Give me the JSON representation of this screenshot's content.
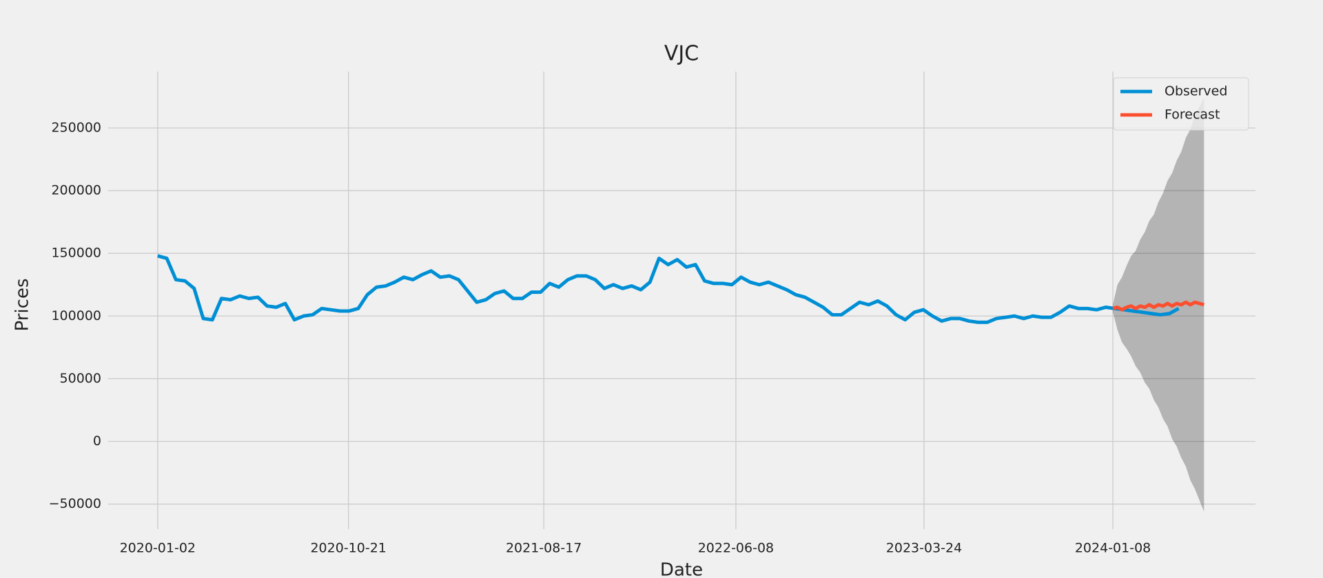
{
  "chart_data": {
    "type": "line",
    "title": "VJC",
    "x_label": "Date",
    "y_label": "Prices",
    "xlim": [
      "2019-10-18",
      "2024-08-14"
    ],
    "xticks": [
      "2020-01-02",
      "2020-10-21",
      "2021-08-17",
      "2022-06-08",
      "2023-03-24",
      "2024-01-08"
    ],
    "ylim": [
      -70000,
      295000
    ],
    "yticks": [
      {
        "value": -50000,
        "label": "−50000"
      },
      0,
      50000,
      100000,
      150000,
      200000,
      250000
    ],
    "grid": true,
    "legend": "upper right",
    "series": [
      {
        "name": "Observed",
        "color": "#008fd5",
        "x": [
          "2020-01-02",
          "2020-01-16",
          "2020-01-30",
          "2020-02-13",
          "2020-02-27",
          "2020-03-12",
          "2020-03-26",
          "2020-04-09",
          "2020-04-23",
          "2020-05-07",
          "2020-05-21",
          "2020-06-04",
          "2020-06-18",
          "2020-07-02",
          "2020-07-16",
          "2020-07-30",
          "2020-08-13",
          "2020-08-27",
          "2020-09-10",
          "2020-09-24",
          "2020-10-08",
          "2020-10-22",
          "2020-11-05",
          "2020-11-19",
          "2020-12-03",
          "2020-12-17",
          "2020-12-31",
          "2021-01-14",
          "2021-01-28",
          "2021-02-11",
          "2021-02-25",
          "2021-03-11",
          "2021-03-25",
          "2021-04-08",
          "2021-04-22",
          "2021-05-06",
          "2021-05-20",
          "2021-06-03",
          "2021-06-17",
          "2021-07-01",
          "2021-07-15",
          "2021-07-29",
          "2021-08-12",
          "2021-08-26",
          "2021-09-09",
          "2021-09-23",
          "2021-10-07",
          "2021-10-21",
          "2021-11-04",
          "2021-11-18",
          "2021-12-02",
          "2021-12-16",
          "2021-12-30",
          "2022-01-13",
          "2022-01-27",
          "2022-02-10",
          "2022-02-24",
          "2022-03-10",
          "2022-03-24",
          "2022-04-07",
          "2022-04-21",
          "2022-05-05",
          "2022-05-19",
          "2022-06-02",
          "2022-06-16",
          "2022-06-30",
          "2022-07-14",
          "2022-07-28",
          "2022-08-11",
          "2022-08-25",
          "2022-09-08",
          "2022-09-22",
          "2022-10-06",
          "2022-10-20",
          "2022-11-03",
          "2022-11-17",
          "2022-12-01",
          "2022-12-15",
          "2022-12-29",
          "2023-01-12",
          "2023-01-26",
          "2023-02-09",
          "2023-02-23",
          "2023-03-09",
          "2023-03-23",
          "2023-04-06",
          "2023-04-20",
          "2023-05-04",
          "2023-05-18",
          "2023-06-01",
          "2023-06-15",
          "2023-06-29",
          "2023-07-13",
          "2023-07-27",
          "2023-08-10",
          "2023-08-24",
          "2023-09-07",
          "2023-09-21",
          "2023-10-05",
          "2023-10-19",
          "2023-11-02",
          "2023-11-16",
          "2023-11-30",
          "2023-12-14",
          "2023-12-28",
          "2024-01-11",
          "2024-01-25",
          "2024-02-08",
          "2024-02-22",
          "2024-03-07",
          "2024-03-21",
          "2024-04-04",
          "2024-04-18"
        ],
        "values": [
          148000,
          146000,
          129000,
          128000,
          122000,
          98000,
          97000,
          114000,
          113000,
          116000,
          114000,
          115000,
          108000,
          107000,
          110000,
          97000,
          100000,
          101000,
          106000,
          105000,
          104000,
          104000,
          106000,
          117000,
          123000,
          124000,
          127000,
          131000,
          129000,
          133000,
          136000,
          131000,
          132000,
          129000,
          120000,
          111000,
          113000,
          118000,
          120000,
          114000,
          114000,
          119000,
          119000,
          126000,
          123000,
          129000,
          132000,
          132000,
          129000,
          122000,
          125000,
          122000,
          124000,
          121000,
          127000,
          146000,
          141000,
          145000,
          139000,
          141000,
          128000,
          126000,
          126000,
          125000,
          131000,
          127000,
          125000,
          127000,
          124000,
          121000,
          117000,
          115000,
          111000,
          107000,
          101000,
          101000,
          106000,
          111000,
          109000,
          112000,
          108000,
          101000,
          97000,
          103000,
          105000,
          100000,
          96000,
          98000,
          98000,
          96000,
          95000,
          95000,
          98000,
          99000,
          100000,
          98000,
          100000,
          99000,
          99000,
          103000,
          108000,
          106000,
          106000,
          105000,
          107000,
          106000,
          105000,
          104000,
          103000,
          102000,
          101000,
          102000,
          106000
        ]
      },
      {
        "name": "Forecast",
        "color": "#fc4f30",
        "x": [
          "2024-01-08",
          "2024-01-15",
          "2024-01-22",
          "2024-01-29",
          "2024-02-05",
          "2024-02-12",
          "2024-02-19",
          "2024-02-26",
          "2024-03-04",
          "2024-03-11",
          "2024-03-18",
          "2024-03-25",
          "2024-04-01",
          "2024-04-08",
          "2024-04-15",
          "2024-04-22",
          "2024-04-29",
          "2024-05-06",
          "2024-05-13",
          "2024-05-20",
          "2024-05-27"
        ],
        "values": [
          106000,
          107000,
          105000,
          107000,
          108000,
          106000,
          108000,
          107000,
          109000,
          107000,
          109000,
          108000,
          110000,
          108000,
          110000,
          109000,
          111000,
          109000,
          111000,
          110000,
          109000
        ]
      }
    ],
    "interval": {
      "color": "#000000",
      "alpha": 0.25,
      "x": [
        "2024-01-08",
        "2024-01-15",
        "2024-01-22",
        "2024-01-29",
        "2024-02-05",
        "2024-02-12",
        "2024-02-19",
        "2024-02-26",
        "2024-03-04",
        "2024-03-11",
        "2024-03-18",
        "2024-03-25",
        "2024-04-01",
        "2024-04-08",
        "2024-04-15",
        "2024-04-22",
        "2024-04-29",
        "2024-05-06",
        "2024-05-13",
        "2024-05-20",
        "2024-05-27"
      ],
      "lower": [
        103000,
        89000,
        79000,
        74000,
        68000,
        60000,
        55000,
        47000,
        42000,
        33000,
        27000,
        18000,
        12000,
        2000,
        -4000,
        -13000,
        -20000,
        -31000,
        -38000,
        -47000,
        -56000
      ],
      "upper": [
        109000,
        125000,
        131000,
        140000,
        148000,
        152000,
        161000,
        167000,
        176000,
        181000,
        191000,
        198000,
        208000,
        214000,
        224000,
        231000,
        242000,
        249000,
        260000,
        267000,
        274000
      ]
    }
  }
}
